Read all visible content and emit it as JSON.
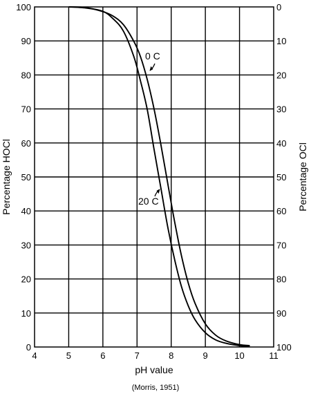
{
  "chart_data": {
    "type": "line",
    "xlabel": "pH value",
    "ylabel": "Percentage HOCl",
    "y2label": "Percentage OCl",
    "source": "(Morris, 1951)",
    "xlim": [
      4,
      11
    ],
    "ylim": [
      0,
      100
    ],
    "x_ticks": [
      "4",
      "5",
      "6",
      "7",
      "8",
      "9",
      "10",
      "11"
    ],
    "y_ticks": [
      "0",
      "10",
      "20",
      "30",
      "40",
      "50",
      "60",
      "70",
      "80",
      "90",
      "100"
    ],
    "y2_ticks": [
      "100",
      "90",
      "80",
      "70",
      "60",
      "50",
      "40",
      "30",
      "20",
      "10",
      "0"
    ],
    "grid": true,
    "series": [
      {
        "name": "0 C",
        "x": [
          5.0,
          5.5,
          6.0,
          6.3,
          6.6,
          6.9,
          7.1,
          7.3,
          7.5,
          7.7,
          7.9,
          8.1,
          8.3,
          8.5,
          8.7,
          9.0,
          9.3,
          9.6,
          10.0,
          10.3
        ],
        "y": [
          100,
          99.8,
          98.6,
          97.3,
          94.8,
          90,
          85.4,
          78.6,
          69.9,
          59.4,
          48,
          36.8,
          26.9,
          18.8,
          12.8,
          6.8,
          3.5,
          1.8,
          0.7,
          0.4
        ]
      },
      {
        "name": "20 C",
        "x": [
          5.0,
          5.5,
          6.0,
          6.3,
          6.6,
          6.9,
          7.1,
          7.3,
          7.5,
          7.7,
          7.9,
          8.1,
          8.3,
          8.5,
          8.7,
          9.0,
          9.3,
          9.6,
          10.0,
          10.3
        ],
        "y": [
          100,
          99.7,
          98.7,
          96.5,
          92.9,
          85.6,
          78.3,
          69.8,
          58,
          46.6,
          35.2,
          25.7,
          17.8,
          12.1,
          8,
          4.2,
          2.1,
          1.1,
          0.4,
          0.2
        ]
      }
    ],
    "annotations": [
      {
        "text": "0 C",
        "points_to": "0 C"
      },
      {
        "text": "20 C",
        "points_to": "20 C"
      }
    ]
  }
}
